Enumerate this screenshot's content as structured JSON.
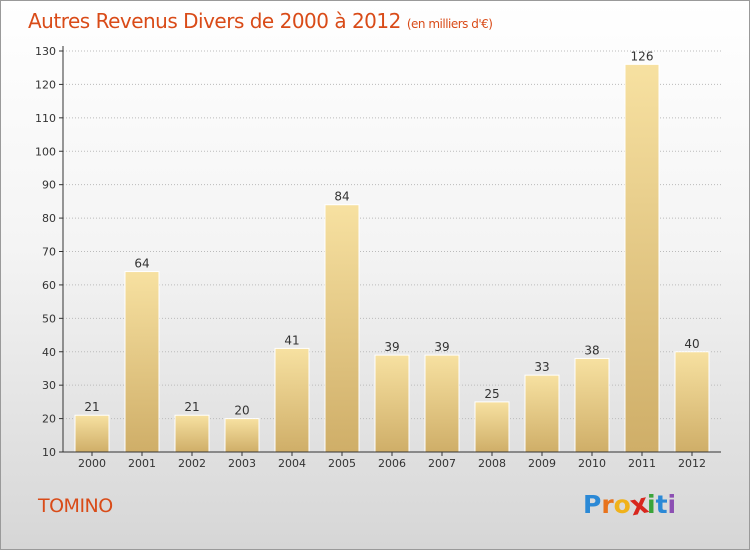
{
  "header": {
    "title": "Autres Revenus Divers de 2000 à 2012",
    "subtitle": "(en milliers d'€)"
  },
  "footer": {
    "commune": "TOMINO",
    "logo_letters": [
      "P",
      "r",
      "o",
      "x",
      "i",
      "t",
      "i"
    ],
    "logo_colors": [
      "#2b89d6",
      "#e8731c",
      "#f0b21a",
      "#d8261d",
      "#3aa43a",
      "#2b89d6",
      "#8c4fb3"
    ]
  },
  "colors": {
    "accent": "#d94b18",
    "bar_light": "#f7e1a1",
    "bar_dark": "#cfae68",
    "axis": "#333333",
    "grid": "#bbbbbb"
  },
  "chart_data": {
    "type": "bar",
    "categories": [
      "2000",
      "2001",
      "2002",
      "2003",
      "2004",
      "2005",
      "2006",
      "2007",
      "2008",
      "2009",
      "2010",
      "2011",
      "2012"
    ],
    "values": [
      21,
      64,
      21,
      20,
      41,
      84,
      39,
      39,
      25,
      33,
      38,
      126,
      40
    ],
    "ylim": [
      10,
      130
    ],
    "yticks": [
      10,
      20,
      30,
      40,
      50,
      60,
      70,
      80,
      90,
      100,
      110,
      120,
      130
    ],
    "grid": true,
    "xlabel": "",
    "ylabel": ""
  }
}
